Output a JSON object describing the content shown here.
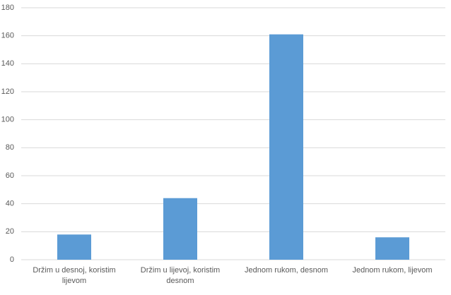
{
  "chart_data": {
    "type": "bar",
    "categories": [
      "Držim u desnoj, koristim lijevom",
      "Držim u lijevoj, koristim desnom",
      "Jednom rukom, desnom",
      "Jednom rukom, lijevom"
    ],
    "values": [
      18,
      44,
      161,
      16
    ],
    "color": "#5b9bd5",
    "ylim": [
      0,
      180
    ],
    "yticks": [
      0,
      20,
      40,
      60,
      80,
      100,
      120,
      140,
      160,
      180
    ],
    "grid": true
  }
}
